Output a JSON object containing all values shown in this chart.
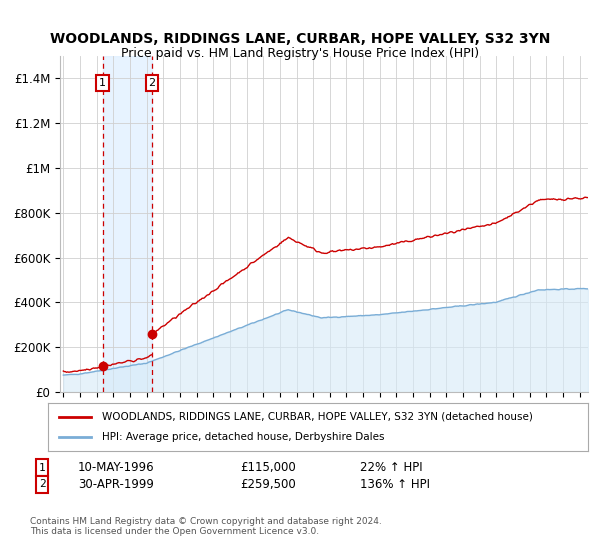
{
  "title": "WOODLANDS, RIDDINGS LANE, CURBAR, HOPE VALLEY, S32 3YN",
  "subtitle": "Price paid vs. HM Land Registry's House Price Index (HPI)",
  "legend_line1": "WOODLANDS, RIDDINGS LANE, CURBAR, HOPE VALLEY, S32 3YN (detached house)",
  "legend_line2": "HPI: Average price, detached house, Derbyshire Dales",
  "property_color": "#cc0000",
  "hpi_color": "#7aadd6",
  "hpi_fill_color": "#d6eaf8",
  "shade_color": "#ddeeff",
  "sale1_label": "1",
  "sale1_date": "10-MAY-1996",
  "sale1_price": "£115,000",
  "sale1_hpi": "22% ↑ HPI",
  "sale1_x": 1996.36,
  "sale1_y": 115000,
  "sale2_label": "2",
  "sale2_date": "30-APR-1999",
  "sale2_price": "£259,500",
  "sale2_hpi": "136% ↑ HPI",
  "sale2_x": 1999.33,
  "sale2_y": 259500,
  "vline1_x": 1996.36,
  "vline2_x": 1999.33,
  "ylim": [
    0,
    1500000
  ],
  "xlim": [
    1993.8,
    2025.5
  ],
  "yticks": [
    0,
    200000,
    400000,
    600000,
    800000,
    1000000,
    1200000,
    1400000
  ],
  "ylabels": [
    "£0",
    "£200K",
    "£400K",
    "£600K",
    "£800K",
    "£1M",
    "£1.2M",
    "£1.4M"
  ],
  "footer": "Contains HM Land Registry data © Crown copyright and database right 2024.\nThis data is licensed under the Open Government Licence v3.0."
}
